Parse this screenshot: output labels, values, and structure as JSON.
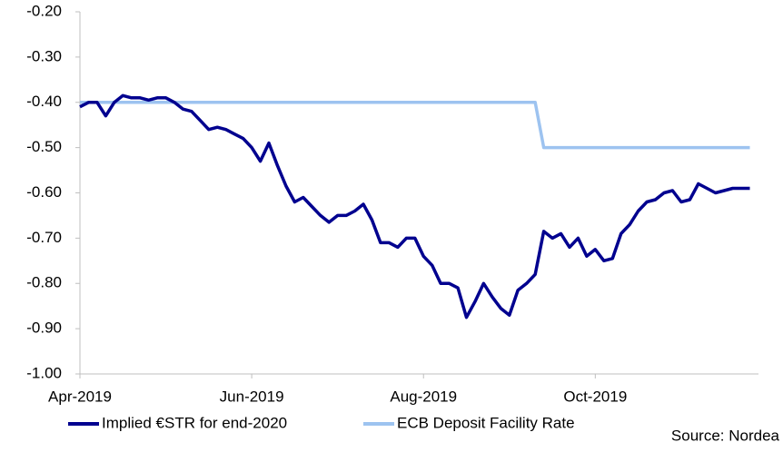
{
  "chart_data": {
    "type": "line",
    "categories": [
      "Apr-2019",
      null,
      null,
      null,
      null,
      null,
      null,
      null,
      null,
      null,
      null,
      null,
      null,
      null,
      null,
      null,
      null,
      null,
      null,
      null,
      "Jun-2019",
      null,
      null,
      null,
      null,
      null,
      null,
      null,
      null,
      null,
      null,
      null,
      null,
      null,
      null,
      null,
      null,
      null,
      null,
      null,
      "Aug-2019",
      null,
      null,
      null,
      null,
      null,
      null,
      null,
      null,
      null,
      null,
      null,
      null,
      null,
      null,
      null,
      null,
      null,
      null,
      null,
      "Oct-2019",
      null,
      null,
      null,
      null,
      null,
      null,
      null,
      null,
      null,
      null,
      null,
      null,
      null,
      null,
      null,
      null,
      null,
      null
    ],
    "series": [
      {
        "name": "Implied €STR for end-2020",
        "color": "#00008f",
        "values": [
          -0.41,
          -0.4,
          -0.4,
          -0.43,
          -0.4,
          -0.385,
          -0.39,
          -0.39,
          -0.395,
          -0.39,
          -0.39,
          -0.4,
          -0.415,
          -0.42,
          -0.44,
          -0.46,
          -0.455,
          -0.46,
          -0.47,
          -0.48,
          -0.5,
          -0.53,
          -0.49,
          -0.54,
          -0.585,
          -0.62,
          -0.61,
          -0.63,
          -0.65,
          -0.665,
          -0.65,
          -0.65,
          -0.64,
          -0.625,
          -0.66,
          -0.71,
          -0.71,
          -0.72,
          -0.7,
          -0.7,
          -0.74,
          -0.76,
          -0.8,
          -0.8,
          -0.81,
          -0.875,
          -0.84,
          -0.8,
          -0.83,
          -0.855,
          -0.87,
          -0.815,
          -0.8,
          -0.78,
          -0.685,
          -0.7,
          -0.69,
          -0.72,
          -0.7,
          -0.74,
          -0.725,
          -0.75,
          -0.745,
          -0.69,
          -0.67,
          -0.64,
          -0.62,
          -0.615,
          -0.6,
          -0.595,
          -0.62,
          -0.615,
          -0.58,
          -0.59,
          -0.6,
          -0.595,
          -0.59,
          -0.59,
          -0.59
        ]
      },
      {
        "name": "ECB Deposit Facility Rate",
        "color": "#9dc3f0",
        "values": [
          -0.4,
          -0.4,
          -0.4,
          -0.4,
          -0.4,
          -0.4,
          -0.4,
          -0.4,
          -0.4,
          -0.4,
          -0.4,
          -0.4,
          -0.4,
          -0.4,
          -0.4,
          -0.4,
          -0.4,
          -0.4,
          -0.4,
          -0.4,
          -0.4,
          -0.4,
          -0.4,
          -0.4,
          -0.4,
          -0.4,
          -0.4,
          -0.4,
          -0.4,
          -0.4,
          -0.4,
          -0.4,
          -0.4,
          -0.4,
          -0.4,
          -0.4,
          -0.4,
          -0.4,
          -0.4,
          -0.4,
          -0.4,
          -0.4,
          -0.4,
          -0.4,
          -0.4,
          -0.4,
          -0.4,
          -0.4,
          -0.4,
          -0.4,
          -0.4,
          -0.4,
          -0.4,
          -0.4,
          -0.5,
          -0.5,
          -0.5,
          -0.5,
          -0.5,
          -0.5,
          -0.5,
          -0.5,
          -0.5,
          -0.5,
          -0.5,
          -0.5,
          -0.5,
          -0.5,
          -0.5,
          -0.5,
          -0.5,
          -0.5,
          -0.5,
          -0.5,
          -0.5,
          -0.5,
          -0.5,
          -0.5,
          -0.5
        ]
      }
    ],
    "ylim": [
      -1.0,
      -0.2
    ],
    "yticks": [
      {
        "value": -1.0,
        "label": "-1.00"
      },
      {
        "value": -0.9,
        "label": "-0.90"
      },
      {
        "value": -0.8,
        "label": "-0.80"
      },
      {
        "value": -0.7,
        "label": "-0.70"
      },
      {
        "value": -0.6,
        "label": "-0.60"
      },
      {
        "value": -0.5,
        "label": "-0.50"
      },
      {
        "value": -0.4,
        "label": "-0.40"
      },
      {
        "value": -0.3,
        "label": "-0.30"
      },
      {
        "value": -0.2,
        "label": "-0.20"
      }
    ],
    "source": "Source: Nordea",
    "grid": false
  }
}
